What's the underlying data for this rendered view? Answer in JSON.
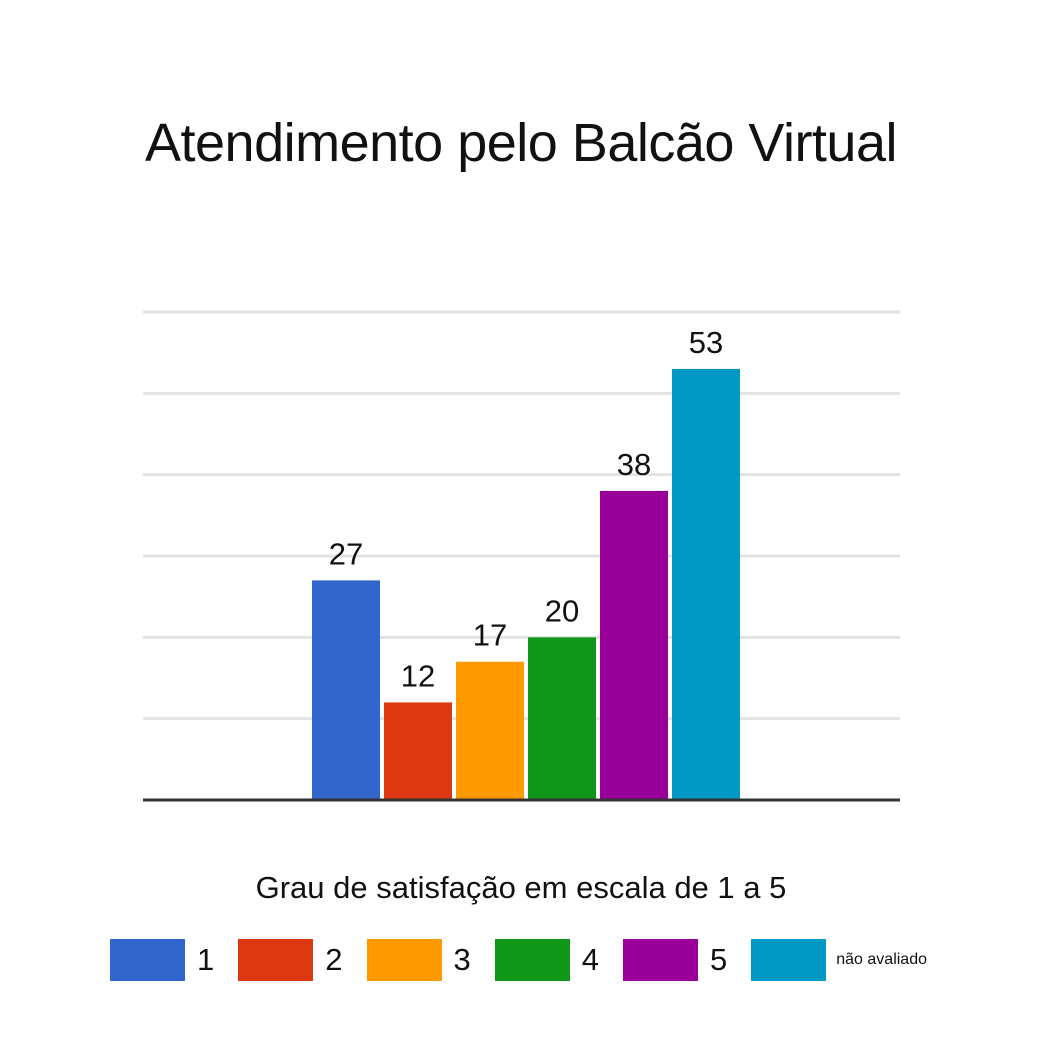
{
  "chart_data": {
    "type": "bar",
    "title": "Atendimento pelo Balcão Virtual",
    "xlabel": "Grau de satisfação em escala de 1 a 5",
    "ylabel": "",
    "categories": [
      "1",
      "2",
      "3",
      "4",
      "5",
      "não avaliado"
    ],
    "values": [
      27,
      12,
      17,
      20,
      38,
      53
    ],
    "colors": [
      "#3366cc",
      "#dc3912",
      "#ff9900",
      "#109618",
      "#990099",
      "#0099c6"
    ],
    "ylim": [
      0,
      60
    ],
    "grid": true,
    "data_labels": true,
    "legend_position": "bottom"
  }
}
